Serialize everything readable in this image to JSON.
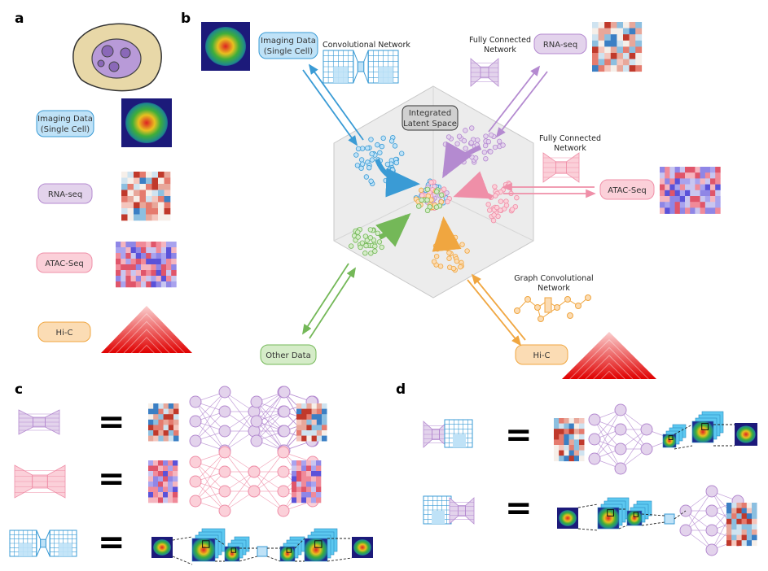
{
  "panels": {
    "a": "a",
    "b": "b",
    "c": "c",
    "d": "d"
  },
  "modalities_a": {
    "imaging": [
      "Imaging Data",
      "(Single Cell)"
    ],
    "rna": "RNA-seq",
    "atac": "ATAC-Seq",
    "hic": "Hi-C"
  },
  "panel_b": {
    "latent": [
      "Integrated",
      "Latent Space"
    ],
    "imaging": [
      "Imaging Data",
      "(Single Cell)"
    ],
    "conv_net": "Convolutional Network",
    "fc_net_rna": [
      "Fully Connected",
      "Network"
    ],
    "rna": "RNA-seq",
    "fc_net_atac": [
      "Fully Connected",
      "Network"
    ],
    "atac": "ATAC-Seq",
    "graph_net": [
      "Graph Convolutional",
      "Network"
    ],
    "hic": "Hi-C",
    "other": "Other Data"
  },
  "equals": "=",
  "colors": {
    "imaging": "#3a9bd5",
    "rna": "#b48ad0",
    "atac": "#ef8fa8",
    "hic": "#f0a640",
    "other": "#74b858",
    "imaging_fill": "#bfe2f7",
    "rna_fill": "#e3d3ec",
    "atac_fill": "#fbd0d9",
    "hic_fill": "#fbdcb4",
    "other_fill": "#d5ecc8",
    "latent_fill": "#d0d0d0"
  }
}
